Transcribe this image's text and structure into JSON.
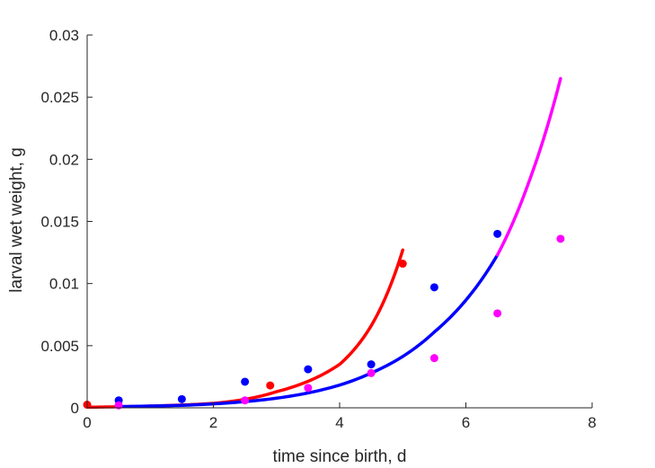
{
  "chart_data": {
    "type": "scatter",
    "title": "",
    "xlabel": "time since birth, d",
    "ylabel": "larval wet weight, g",
    "xlim": [
      0,
      8
    ],
    "ylim": [
      0,
      0.03
    ],
    "x_ticks": [
      0,
      2,
      4,
      6,
      8
    ],
    "x_tick_labels": [
      "0",
      "2",
      "4",
      "6",
      "8"
    ],
    "y_ticks": [
      0,
      0.005,
      0.01,
      0.015,
      0.02,
      0.025,
      0.03
    ],
    "y_tick_labels": [
      "0",
      "0.005",
      "0.01",
      "0.015",
      "0.02",
      "0.025",
      "0.03"
    ],
    "grid": false,
    "legend": false,
    "points": [
      {
        "color": "#ff0000",
        "x": [
          0,
          2.9,
          5.0
        ],
        "y": [
          0.00025,
          0.0018,
          0.0116
        ]
      },
      {
        "color": "#0000ff",
        "x": [
          0.5,
          1.5,
          2.5,
          3.5,
          4.5,
          5.5,
          6.5
        ],
        "y": [
          0.0006,
          0.0007,
          0.0021,
          0.0031,
          0.0035,
          0.0097,
          0.014
        ]
      },
      {
        "color": "#ff00ff",
        "x": [
          0.5,
          2.5,
          3.5,
          4.5,
          5.5,
          6.5,
          7.5
        ],
        "y": [
          0.0002,
          0.0006,
          0.0016,
          0.0028,
          0.004,
          0.0076,
          0.0136
        ]
      }
    ],
    "curves": [
      {
        "color": "#ff0000",
        "x": [
          0,
          1,
          2,
          3,
          4,
          4.5,
          5.0
        ],
        "y": [
          5e-05,
          0.00014,
          0.00036,
          0.0013,
          0.0035,
          0.0066,
          0.0127
        ]
      },
      {
        "color": "#0000ff",
        "x": [
          0.5,
          1.5,
          2.5,
          3.5,
          4.5,
          5.5,
          6.5
        ],
        "y": [
          0.0001,
          0.0002,
          0.0005,
          0.0012,
          0.0028,
          0.0061,
          0.0123
        ]
      },
      {
        "color": "#ff00ff",
        "x": [
          6.5,
          7.0,
          7.5
        ],
        "y": [
          0.0123,
          0.0182,
          0.0265
        ]
      }
    ]
  }
}
